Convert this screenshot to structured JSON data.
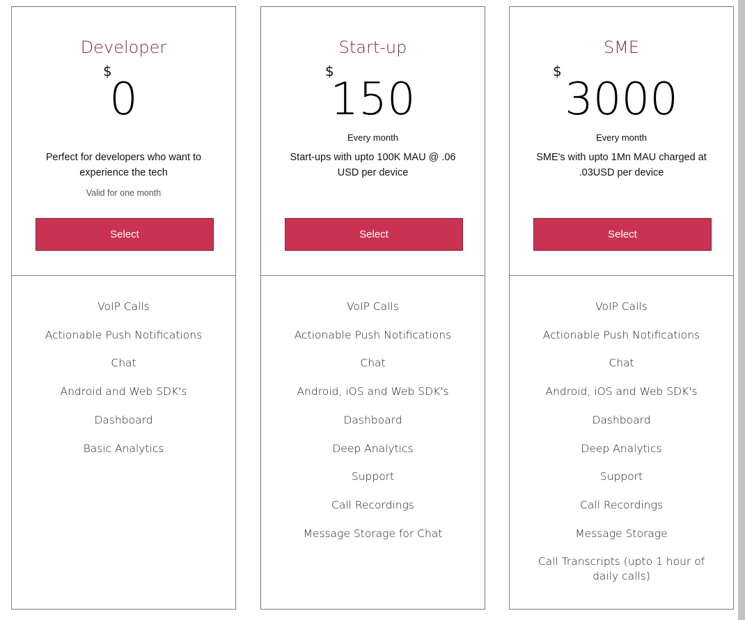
{
  "plans": [
    {
      "title": "Developer",
      "currency": "$",
      "price": "0",
      "period": "",
      "description": "Perfect for developers who want to experience the tech",
      "note": "Valid for one month",
      "button": "Select",
      "features": [
        "VoIP Calls",
        "Actionable Push Notifications",
        "Chat",
        "Android and Web SDK's",
        "Dashboard",
        "Basic Analytics"
      ]
    },
    {
      "title": "Start-up",
      "currency": "$",
      "price": "150",
      "period": "Every month",
      "description": "Start-ups with upto 100K MAU @ .06 USD per device",
      "note": "",
      "button": "Select",
      "features": [
        "VoIP Calls",
        "Actionable Push Notifications",
        "Chat",
        "Android, iOS and Web SDK's",
        "Dashboard",
        "Deep Analytics",
        "Support",
        "Call Recordings",
        "Message Storage for Chat"
      ]
    },
    {
      "title": "SME",
      "currency": "$",
      "price": "3000",
      "period": "Every month",
      "description": "SME's with upto 1Mn MAU charged at .03USD per device",
      "note": "",
      "button": "Select",
      "features": [
        "VoIP Calls",
        "Actionable Push Notifications",
        "Chat",
        "Android, iOS and Web SDK's",
        "Dashboard",
        "Deep Analytics",
        "Support",
        "Call Recordings",
        "Message Storage",
        "Call Transcripts (upto 1 hour of daily calls)"
      ]
    }
  ],
  "colors": {
    "accent": "#c93251",
    "title": "#7a2a44"
  }
}
